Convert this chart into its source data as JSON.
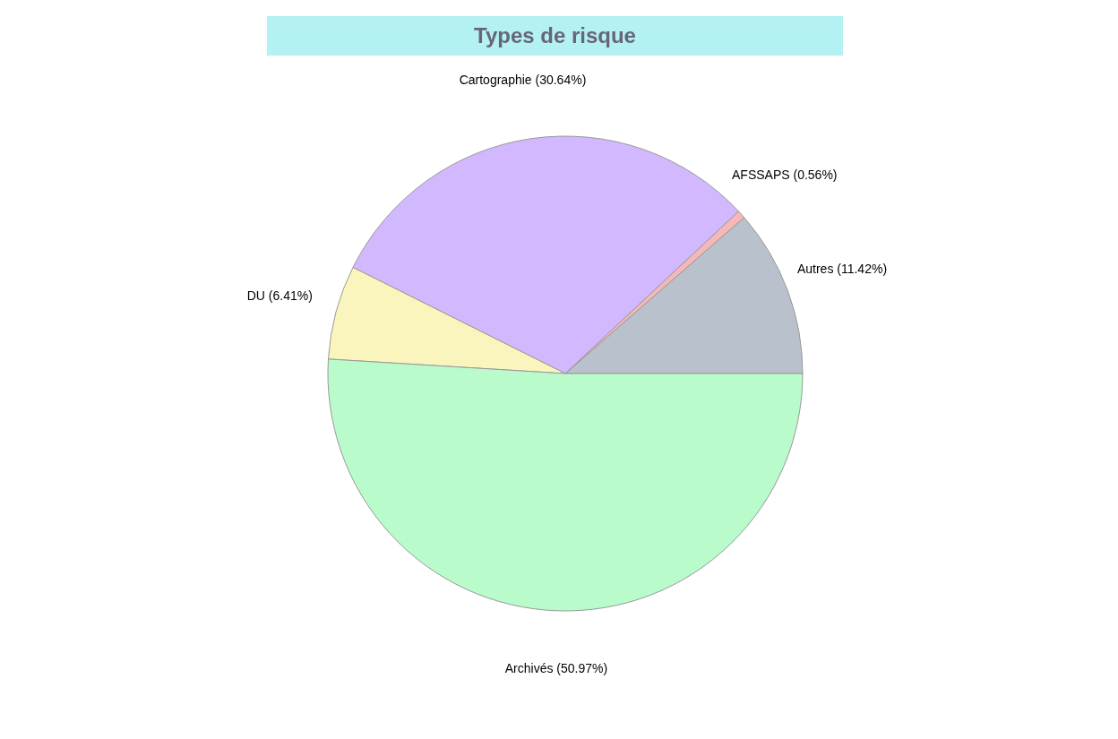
{
  "chart_data": {
    "type": "pie",
    "title": "Types de risque",
    "categories": [
      "Autres (11.42%)",
      "AFSSAPS (0.56%)",
      "Cartographie (30.64%)",
      "DU (6.41%)",
      "Archivés (50.97%)"
    ],
    "values": [
      11.42,
      0.56,
      30.64,
      6.41,
      50.97
    ],
    "colors": [
      "#b9c1cc",
      "#f5b8b8",
      "#d2b8ff",
      "#faf5bd",
      "#b9fbcb"
    ]
  }
}
